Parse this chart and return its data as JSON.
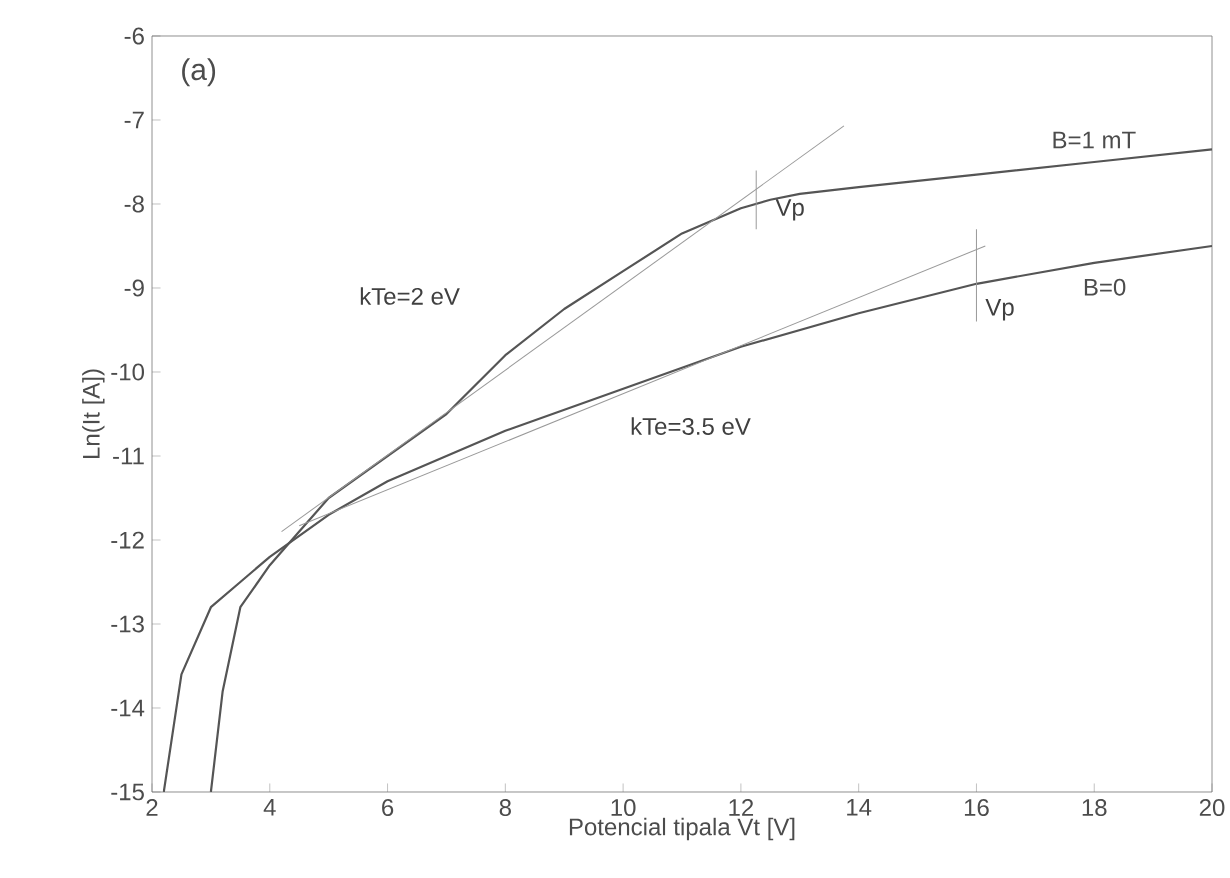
{
  "chart_data": {
    "type": "line",
    "xlabel": "Potencial tipala  Vt [V]",
    "ylabel": "Ln(It [A])",
    "xlim": [
      2,
      20
    ],
    "ylim": [
      -15,
      -6
    ],
    "xticks": [
      2,
      4,
      6,
      8,
      10,
      12,
      14,
      16,
      18,
      20
    ],
    "yticks": [
      -15,
      -14,
      -13,
      -12,
      -11,
      -10,
      -9,
      -8,
      -7,
      -6
    ],
    "grid": false,
    "legend": false,
    "marker": "none",
    "line_style": "solid",
    "series": [
      {
        "name": "B=1 mT",
        "color": "#555555",
        "x": [
          3.0,
          3.2,
          3.5,
          4.0,
          4.5,
          5,
          6,
          7,
          8,
          9,
          10,
          11,
          12,
          12.5,
          13,
          14,
          16,
          18,
          20
        ],
        "values": [
          -15,
          -13.8,
          -12.8,
          -12.3,
          -11.9,
          -11.5,
          -11,
          -10.5,
          -9.8,
          -9.25,
          -8.8,
          -8.35,
          -8.05,
          -7.95,
          -7.88,
          -7.8,
          -7.65,
          -7.5,
          -7.35
        ]
      },
      {
        "name": "B=0",
        "color": "#555555",
        "x": [
          2.2,
          2.5,
          3.0,
          3.5,
          4.0,
          5,
          6,
          7,
          8,
          10,
          12,
          14,
          16,
          18,
          20
        ],
        "values": [
          -15,
          -13.6,
          -12.8,
          -12.5,
          -12.2,
          -11.7,
          -11.3,
          -11,
          -10.7,
          -10.2,
          -9.7,
          -9.3,
          -8.95,
          -8.7,
          -8.5
        ]
      },
      {
        "color": "#999999",
        "x": [
          4.2,
          13.75
        ],
        "values": [
          -11.9,
          -7.07
        ]
      },
      {
        "color": "#999999",
        "x": [
          4.5,
          16.15
        ],
        "values": [
          -11.83,
          -8.5
        ]
      },
      {
        "color": "#999999",
        "x": [
          12.26,
          12.26
        ],
        "values": [
          -7.6,
          -8.3
        ]
      },
      {
        "color": "#999999",
        "x": [
          16.0,
          16.0
        ],
        "values": [
          -8.3,
          -9.4
        ]
      }
    ],
    "annotations": [
      "(a)",
      "kTe=2 eV",
      "kTe=3.5 eV",
      "Vp",
      "Vp"
    ]
  }
}
